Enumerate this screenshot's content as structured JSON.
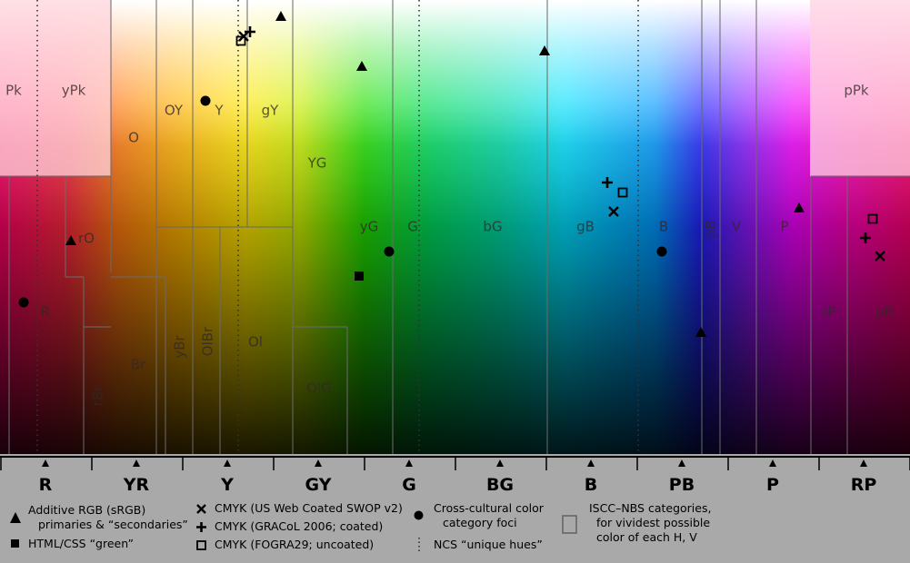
{
  "colors": {
    "background": "#a9a9a9",
    "boundary": "#6b6b6b",
    "marker": "#000000"
  },
  "hue_axis": [
    "R",
    "YR",
    "Y",
    "GY",
    "G",
    "BG",
    "B",
    "PB",
    "P",
    "RP"
  ],
  "categories": [
    {
      "id": "Pk",
      "label": "Pk"
    },
    {
      "id": "yPk",
      "label": "yPk"
    },
    {
      "id": "O",
      "label": "O"
    },
    {
      "id": "OY",
      "label": "OY"
    },
    {
      "id": "Y",
      "label": "Y"
    },
    {
      "id": "gY",
      "label": "gY"
    },
    {
      "id": "YG",
      "label": "YG"
    },
    {
      "id": "rO",
      "label": "rO"
    },
    {
      "id": "yG",
      "label": "yG"
    },
    {
      "id": "G",
      "label": "G"
    },
    {
      "id": "bG",
      "label": "bG"
    },
    {
      "id": "gB",
      "label": "gB"
    },
    {
      "id": "B",
      "label": "B"
    },
    {
      "id": "pB",
      "label": "pB"
    },
    {
      "id": "V",
      "label": "V"
    },
    {
      "id": "P",
      "label": "P"
    },
    {
      "id": "pPk",
      "label": "pPk"
    },
    {
      "id": "R",
      "label": "R"
    },
    {
      "id": "rP",
      "label": "rP"
    },
    {
      "id": "pR",
      "label": "pR"
    },
    {
      "id": "Br",
      "label": "Br"
    },
    {
      "id": "yBr",
      "label": "yBr"
    },
    {
      "id": "OlBr",
      "label": "OlBr"
    },
    {
      "id": "Ol",
      "label": "Ol"
    },
    {
      "id": "rBr",
      "label": "rBr"
    },
    {
      "id": "OlG",
      "label": "OlG"
    }
  ],
  "markers": [
    {
      "type": "triangle",
      "group": "rgb"
    },
    {
      "type": "triangle",
      "group": "rgb"
    },
    {
      "type": "triangle",
      "group": "rgb"
    },
    {
      "type": "triangle",
      "group": "rgb"
    },
    {
      "type": "triangle",
      "group": "rgb"
    },
    {
      "type": "triangle",
      "group": "rgb"
    },
    {
      "type": "filled-square",
      "group": "html"
    },
    {
      "type": "circle",
      "group": "foci"
    },
    {
      "type": "circle",
      "group": "foci"
    },
    {
      "type": "circle",
      "group": "foci"
    },
    {
      "type": "circle",
      "group": "foci"
    },
    {
      "type": "x",
      "group": "swop"
    },
    {
      "type": "x",
      "group": "swop"
    },
    {
      "type": "x",
      "group": "swop"
    },
    {
      "type": "plus",
      "group": "gracol"
    },
    {
      "type": "plus",
      "group": "gracol"
    },
    {
      "type": "plus",
      "group": "gracol"
    },
    {
      "type": "open-square",
      "group": "fogra"
    },
    {
      "type": "open-square",
      "group": "fogra"
    },
    {
      "type": "open-square",
      "group": "fogra"
    }
  ],
  "legend": {
    "rgb_line1": "Additive RGB (sRGB)",
    "rgb_line2": "primaries & “secondaries”",
    "html": "HTML/CSS “green”",
    "swop": "CMYK (US Web Coated SWOP v2)",
    "gracol": "CMYK (GRACoL 2006; coated)",
    "fogra": "CMYK (FOGRA29; uncoated)",
    "foci_line1": "Cross-cultural color",
    "foci_line2": "category foci",
    "ncs": "NCS “unique hues”",
    "iscc_line1": "ISCC–NBS categories,",
    "iscc_line2": "for vividest possible",
    "iscc_line3": "color of each H, V"
  }
}
